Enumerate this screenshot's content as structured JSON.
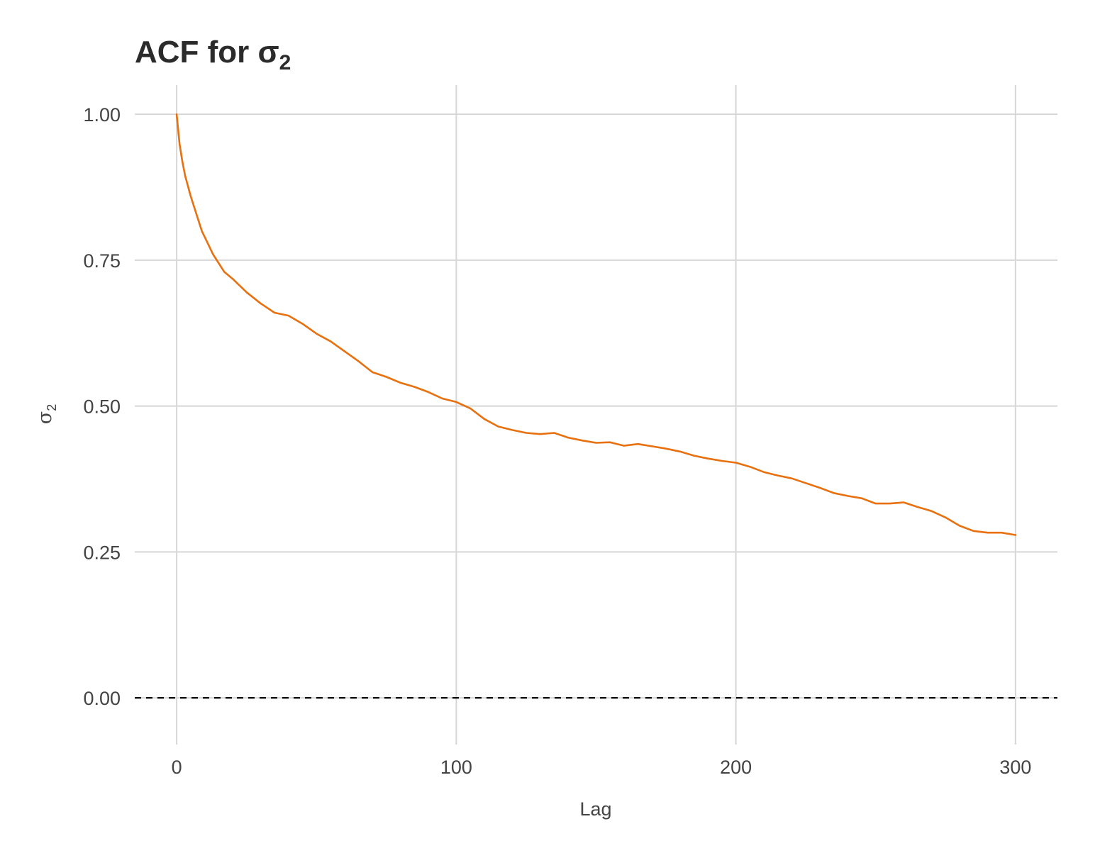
{
  "chart_data": {
    "type": "line",
    "title": "ACF for σ",
    "title_symbol": "σ",
    "title_subscript": "2",
    "xlabel": "Lag",
    "ylabel_symbol": "σ",
    "ylabel_subscript": "2",
    "xlim": [
      -15,
      315
    ],
    "ylim": [
      -0.08,
      1.05
    ],
    "x_ticks": [
      0,
      100,
      200,
      300
    ],
    "x_tick_labels": [
      "0",
      "100",
      "200",
      "300"
    ],
    "y_ticks": [
      0.0,
      0.25,
      0.5,
      0.75,
      1.0
    ],
    "y_tick_labels": [
      "0.00",
      "0.25",
      "0.50",
      "0.75",
      "1.00"
    ],
    "grid": true,
    "reference_line": {
      "y": 0,
      "style": "dashed",
      "color": "#000000"
    },
    "series": [
      {
        "color": "#e8700f",
        "x": [
          0,
          1,
          2,
          3,
          5,
          7,
          9,
          11,
          13,
          15,
          17,
          20,
          25,
          30,
          35,
          40,
          45,
          50,
          55,
          60,
          65,
          70,
          75,
          80,
          85,
          90,
          95,
          100,
          105,
          110,
          115,
          120,
          125,
          130,
          135,
          140,
          145,
          150,
          155,
          160,
          165,
          170,
          175,
          180,
          185,
          190,
          195,
          200,
          205,
          210,
          215,
          220,
          225,
          230,
          235,
          240,
          245,
          250,
          255,
          260,
          265,
          270,
          275,
          280,
          285,
          290,
          295,
          300
        ],
        "y": [
          1.0,
          0.95,
          0.92,
          0.895,
          0.86,
          0.83,
          0.8,
          0.78,
          0.76,
          0.745,
          0.73,
          0.718,
          0.695,
          0.676,
          0.66,
          0.655,
          0.641,
          0.624,
          0.611,
          0.594,
          0.577,
          0.558,
          0.55,
          0.54,
          0.533,
          0.524,
          0.513,
          0.507,
          0.496,
          0.478,
          0.465,
          0.459,
          0.454,
          0.452,
          0.454,
          0.446,
          0.441,
          0.437,
          0.438,
          0.432,
          0.435,
          0.431,
          0.427,
          0.422,
          0.415,
          0.41,
          0.406,
          0.403,
          0.396,
          0.387,
          0.381,
          0.376,
          0.368,
          0.36,
          0.351,
          0.346,
          0.342,
          0.333,
          0.333,
          0.335,
          0.327,
          0.32,
          0.309,
          0.295,
          0.286,
          0.283,
          0.283,
          0.279
        ]
      }
    ]
  }
}
